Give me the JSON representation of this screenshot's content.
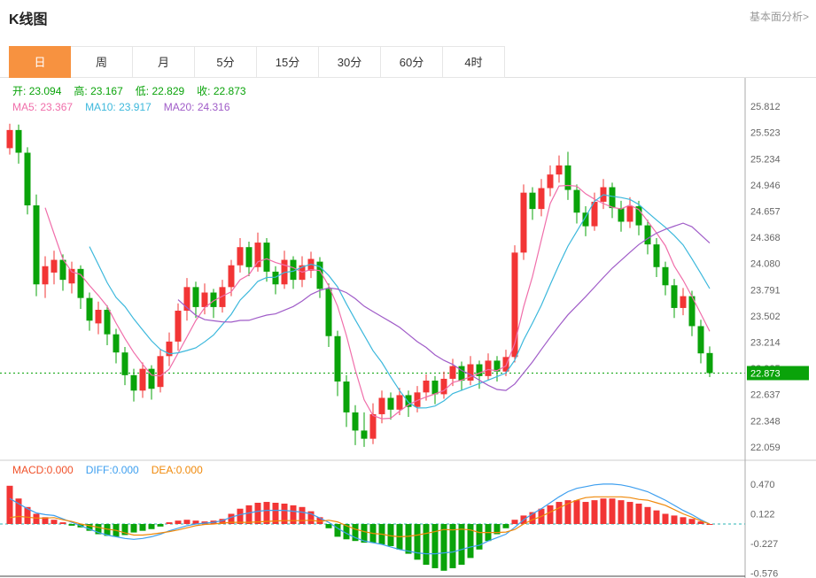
{
  "header": {
    "title": "K线图",
    "analysis_link": "基本面分析>"
  },
  "tabs": {
    "active_index": 0,
    "items": [
      {
        "name": "tab-day",
        "label": "日"
      },
      {
        "name": "tab-week",
        "label": "周"
      },
      {
        "name": "tab-month",
        "label": "月"
      },
      {
        "name": "tab-5min",
        "label": "5分"
      },
      {
        "name": "tab-15min",
        "label": "15分"
      },
      {
        "name": "tab-30min",
        "label": "30分"
      },
      {
        "name": "tab-60min",
        "label": "60分"
      },
      {
        "name": "tab-4hour",
        "label": "4时"
      }
    ]
  },
  "ohlc": {
    "open_label": "开:",
    "open": "23.094",
    "high_label": "高:",
    "high": "23.167",
    "low_label": "低:",
    "low": "22.829",
    "close_label": "收:",
    "close": "22.873"
  },
  "ma": {
    "ma5_label": "MA5:",
    "ma5": "23.367",
    "ma10_label": "MA10:",
    "ma10": "23.917",
    "ma20_label": "MA20:",
    "ma20": "24.316"
  },
  "macd_legend": {
    "macd_label": "MACD:",
    "macd": "0.000",
    "diff_label": "DIFF:",
    "diff": "0.000",
    "dea_label": "DEA:",
    "dea": "0.000"
  },
  "colors": {
    "up": "#f23535",
    "down": "#0aa30a",
    "ma5": "#f06eaa",
    "ma10": "#3cb8dc",
    "ma20": "#a05cc8",
    "diff": "#3e9fef",
    "dea": "#f0890a",
    "zero_line": "#2ab5b5",
    "axis_text": "#666666",
    "badge_text": "#ffffff",
    "tab_active": "#f79240"
  },
  "chart_data": {
    "type": "candlestick",
    "ohlc_format": "[open, high, low, close]",
    "main": {
      "y_axis_labels": [
        "25.812",
        "25.523",
        "25.234",
        "24.946",
        "24.657",
        "24.368",
        "24.080",
        "23.791",
        "23.502",
        "23.214",
        "22.925",
        "22.637",
        "22.348",
        "22.059"
      ],
      "current_price": "22.873",
      "ma_periods": [
        5,
        10,
        20
      ],
      "candles": [
        [
          25.35,
          25.62,
          25.28,
          25.55
        ],
        [
          25.55,
          25.61,
          25.18,
          25.3
        ],
        [
          25.3,
          25.36,
          24.62,
          24.72
        ],
        [
          24.72,
          24.84,
          23.72,
          23.85
        ],
        [
          23.85,
          24.16,
          23.7,
          24.05
        ],
        [
          23.98,
          24.22,
          23.85,
          24.12
        ],
        [
          24.12,
          24.18,
          23.78,
          23.9
        ],
        [
          23.86,
          24.1,
          23.75,
          24.02
        ],
        [
          24.02,
          24.06,
          23.58,
          23.7
        ],
        [
          23.7,
          23.76,
          23.34,
          23.45
        ],
        [
          23.42,
          23.66,
          23.3,
          23.57
        ],
        [
          23.57,
          23.62,
          23.18,
          23.3
        ],
        [
          23.3,
          23.36,
          22.98,
          23.1
        ],
        [
          23.1,
          23.16,
          22.74,
          22.85
        ],
        [
          22.85,
          22.92,
          22.56,
          22.68
        ],
        [
          22.68,
          22.99,
          22.6,
          22.92
        ],
        [
          22.92,
          22.96,
          22.58,
          22.7
        ],
        [
          22.72,
          23.14,
          22.66,
          23.06
        ],
        [
          23.06,
          23.32,
          22.95,
          23.22
        ],
        [
          23.22,
          23.64,
          23.12,
          23.56
        ],
        [
          23.56,
          23.92,
          23.45,
          23.82
        ],
        [
          23.82,
          23.88,
          23.48,
          23.6
        ],
        [
          23.6,
          23.86,
          23.52,
          23.76
        ],
        [
          23.76,
          23.8,
          23.48,
          23.6
        ],
        [
          23.6,
          23.9,
          23.54,
          23.82
        ],
        [
          23.82,
          24.12,
          23.72,
          24.06
        ],
        [
          24.06,
          24.36,
          23.98,
          24.26
        ],
        [
          24.26,
          24.32,
          23.94,
          24.04
        ],
        [
          24.04,
          24.42,
          23.99,
          24.31
        ],
        [
          24.31,
          24.36,
          23.88,
          23.99
        ],
        [
          23.99,
          24.05,
          23.74,
          23.85
        ],
        [
          23.85,
          24.22,
          23.8,
          24.12
        ],
        [
          24.12,
          24.16,
          23.8,
          23.9
        ],
        [
          23.9,
          24.16,
          23.82,
          24.06
        ],
        [
          24.0,
          24.21,
          23.92,
          24.13
        ],
        [
          24.1,
          24.15,
          23.7,
          23.8
        ],
        [
          23.8,
          23.86,
          23.16,
          23.28
        ],
        [
          23.28,
          23.34,
          22.62,
          22.78
        ],
        [
          22.78,
          22.85,
          22.28,
          22.44
        ],
        [
          22.44,
          22.52,
          22.08,
          22.24
        ],
        [
          22.24,
          22.44,
          22.06,
          22.15
        ],
        [
          22.15,
          22.54,
          22.09,
          22.42
        ],
        [
          22.42,
          22.68,
          22.32,
          22.6
        ],
        [
          22.6,
          22.66,
          22.36,
          22.47
        ],
        [
          22.47,
          22.71,
          22.41,
          22.63
        ],
        [
          22.63,
          22.68,
          22.39,
          22.5
        ],
        [
          22.5,
          22.73,
          22.44,
          22.66
        ],
        [
          22.66,
          22.86,
          22.57,
          22.79
        ],
        [
          22.79,
          22.84,
          22.53,
          22.64
        ],
        [
          22.64,
          22.89,
          22.59,
          22.81
        ],
        [
          22.81,
          23.03,
          22.73,
          22.95
        ],
        [
          22.95,
          23.0,
          22.68,
          22.79
        ],
        [
          22.79,
          23.06,
          22.74,
          22.97
        ],
        [
          22.97,
          23.01,
          22.7,
          22.84
        ],
        [
          22.84,
          23.09,
          22.79,
          23.01
        ],
        [
          23.01,
          23.06,
          22.78,
          22.89
        ],
        [
          22.89,
          23.13,
          22.84,
          23.05
        ],
        [
          23.05,
          24.28,
          22.99,
          24.2
        ],
        [
          24.2,
          24.95,
          24.12,
          24.86
        ],
        [
          24.86,
          24.92,
          24.56,
          24.68
        ],
        [
          24.68,
          25.01,
          24.6,
          24.91
        ],
        [
          24.91,
          25.16,
          24.82,
          25.06
        ],
        [
          25.06,
          25.27,
          24.97,
          25.16
        ],
        [
          25.16,
          25.31,
          24.78,
          24.89
        ],
        [
          24.89,
          24.95,
          24.52,
          24.64
        ],
        [
          24.64,
          24.71,
          24.38,
          24.49
        ],
        [
          24.49,
          24.86,
          24.44,
          24.76
        ],
        [
          24.76,
          25.01,
          24.68,
          24.92
        ],
        [
          24.92,
          24.97,
          24.58,
          24.69
        ],
        [
          24.69,
          24.77,
          24.43,
          24.54
        ],
        [
          24.54,
          24.81,
          24.47,
          24.71
        ],
        [
          24.71,
          24.77,
          24.39,
          24.5
        ],
        [
          24.5,
          24.56,
          24.18,
          24.29
        ],
        [
          24.29,
          24.36,
          23.93,
          24.04
        ],
        [
          24.04,
          24.1,
          23.73,
          23.84
        ],
        [
          23.84,
          23.91,
          23.48,
          23.59
        ],
        [
          23.59,
          23.81,
          23.51,
          23.72
        ],
        [
          23.72,
          23.78,
          23.28,
          23.39
        ],
        [
          23.39,
          23.46,
          22.98,
          23.09
        ],
        [
          23.094,
          23.167,
          22.829,
          22.873
        ]
      ]
    },
    "macd": {
      "type": "bar",
      "y_axis_labels": [
        "0.470",
        "0.122",
        "-0.227",
        "-0.576"
      ],
      "diff": [
        0.3,
        0.24,
        0.18,
        0.13,
        0.11,
        0.1,
        0.06,
        0.02,
        -0.02,
        -0.06,
        -0.1,
        -0.13,
        -0.15,
        -0.17,
        -0.18,
        -0.17,
        -0.15,
        -0.12,
        -0.08,
        -0.05,
        -0.02,
        0.0,
        0.01,
        0.02,
        0.04,
        0.08,
        0.11,
        0.13,
        0.15,
        0.16,
        0.16,
        0.16,
        0.15,
        0.14,
        0.12,
        0.07,
        0.02,
        -0.05,
        -0.11,
        -0.16,
        -0.2,
        -0.22,
        -0.24,
        -0.27,
        -0.3,
        -0.32,
        -0.34,
        -0.35,
        -0.35,
        -0.34,
        -0.33,
        -0.3,
        -0.27,
        -0.25,
        -0.2,
        -0.16,
        -0.12,
        -0.04,
        0.05,
        0.12,
        0.18,
        0.25,
        0.32,
        0.38,
        0.42,
        0.44,
        0.46,
        0.47,
        0.47,
        0.46,
        0.44,
        0.41,
        0.38,
        0.33,
        0.28,
        0.22,
        0.16,
        0.11,
        0.05,
        0.0
      ],
      "bar": [
        0.45,
        0.3,
        0.2,
        0.12,
        0.08,
        0.05,
        0.02,
        -0.02,
        -0.04,
        -0.08,
        -0.12,
        -0.14,
        -0.15,
        -0.13,
        -0.1,
        -0.08,
        -0.06,
        -0.03,
        0.02,
        0.04,
        0.05,
        0.04,
        0.03,
        0.04,
        0.06,
        0.12,
        0.18,
        0.22,
        0.25,
        0.26,
        0.25,
        0.24,
        0.22,
        0.2,
        0.15,
        0.08,
        -0.05,
        -0.15,
        -0.18,
        -0.2,
        -0.22,
        -0.22,
        -0.24,
        -0.26,
        -0.3,
        -0.35,
        -0.42,
        -0.48,
        -0.52,
        -0.55,
        -0.52,
        -0.48,
        -0.4,
        -0.3,
        -0.2,
        -0.12,
        -0.05,
        0.05,
        0.1,
        0.14,
        0.18,
        0.22,
        0.26,
        0.28,
        0.28,
        0.26,
        0.28,
        0.3,
        0.3,
        0.28,
        0.26,
        0.24,
        0.2,
        0.16,
        0.12,
        0.1,
        0.08,
        0.06,
        0.03,
        0.0
      ]
    }
  }
}
